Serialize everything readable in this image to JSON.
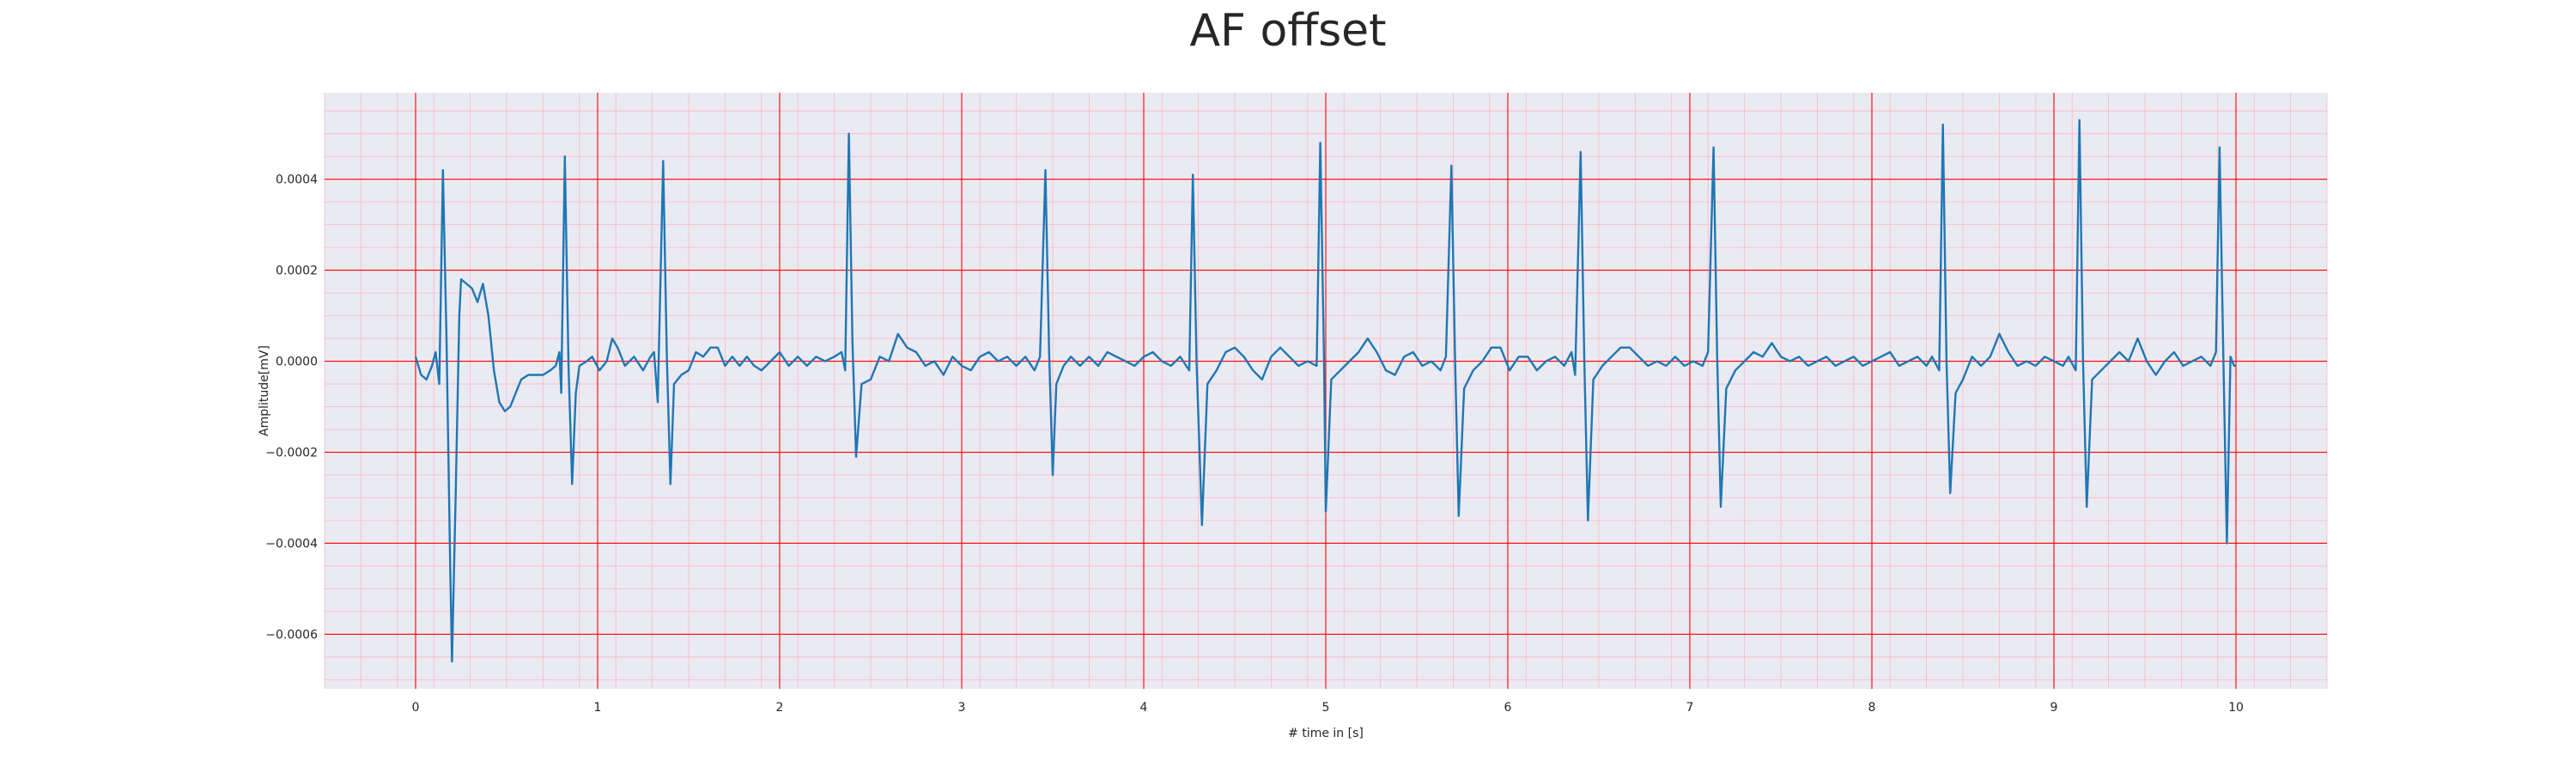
{
  "chart_data": {
    "type": "line",
    "title": "AF offset",
    "xlabel": "# time in [s]",
    "ylabel": "Amplitude[mV]",
    "xlim": [
      -0.5,
      10.5
    ],
    "ylim": [
      -0.00072,
      0.00059
    ],
    "x_ticks": [
      0,
      1,
      2,
      3,
      4,
      5,
      6,
      7,
      8,
      9,
      10
    ],
    "y_ticks": [
      0.0004,
      0.0002,
      0.0,
      -0.0002,
      -0.0004,
      -0.0006
    ],
    "y_tick_labels": [
      "0.0004",
      "0.0002",
      "0.0000",
      "−0.0002",
      "−0.0004",
      "−0.0006"
    ],
    "grid": "major and minor (ECG paper style)",
    "colors": {
      "background": "#eaeaf2",
      "major_grid": "#ff0000",
      "minor_grid": "#ffb6c1",
      "line": "#1f77b4"
    },
    "series": [
      {
        "values": [
          [
            0.0,
            1e-05
          ],
          [
            0.03,
            -3e-05
          ],
          [
            0.06,
            -4e-05
          ],
          [
            0.09,
            -1e-05
          ],
          [
            0.11,
            2e-05
          ],
          [
            0.13,
            -5e-05
          ],
          [
            0.15,
            0.00042
          ],
          [
            0.17,
            5e-05
          ],
          [
            0.19,
            -0.00045
          ],
          [
            0.2,
            -0.00066
          ],
          [
            0.22,
            -0.0003
          ],
          [
            0.24,
            0.0001
          ],
          [
            0.25,
            0.00018
          ],
          [
            0.28,
            0.00017
          ],
          [
            0.31,
            0.00016
          ],
          [
            0.34,
            0.00013
          ],
          [
            0.37,
            0.00017
          ],
          [
            0.4,
            0.0001
          ],
          [
            0.43,
            -2e-05
          ],
          [
            0.46,
            -9e-05
          ],
          [
            0.49,
            -0.00011
          ],
          [
            0.52,
            -0.0001
          ],
          [
            0.55,
            -7e-05
          ],
          [
            0.58,
            -4e-05
          ],
          [
            0.62,
            -3e-05
          ],
          [
            0.66,
            -3e-05
          ],
          [
            0.7,
            -3e-05
          ],
          [
            0.74,
            -2e-05
          ],
          [
            0.77,
            -1e-05
          ],
          [
            0.79,
            2e-05
          ],
          [
            0.8,
            -7e-05
          ],
          [
            0.82,
            0.00045
          ],
          [
            0.84,
            -1e-05
          ],
          [
            0.86,
            -0.00027
          ],
          [
            0.88,
            -7e-05
          ],
          [
            0.9,
            -1e-05
          ],
          [
            0.94,
            0.0
          ],
          [
            0.97,
            1e-05
          ],
          [
            1.01,
            -2e-05
          ],
          [
            1.05,
            0.0
          ],
          [
            1.08,
            5e-05
          ],
          [
            1.11,
            3e-05
          ],
          [
            1.15,
            -1e-05
          ],
          [
            1.2,
            1e-05
          ],
          [
            1.25,
            -2e-05
          ],
          [
            1.29,
            1e-05
          ],
          [
            1.31,
            2e-05
          ],
          [
            1.33,
            -9e-05
          ],
          [
            1.36,
            0.00044
          ],
          [
            1.38,
            1e-05
          ],
          [
            1.4,
            -0.00027
          ],
          [
            1.42,
            -5e-05
          ],
          [
            1.46,
            -3e-05
          ],
          [
            1.5,
            -2e-05
          ],
          [
            1.54,
            2e-05
          ],
          [
            1.58,
            1e-05
          ],
          [
            1.62,
            3e-05
          ],
          [
            1.66,
            3e-05
          ],
          [
            1.7,
            -1e-05
          ],
          [
            1.74,
            1e-05
          ],
          [
            1.78,
            -1e-05
          ],
          [
            1.82,
            1e-05
          ],
          [
            1.86,
            -1e-05
          ],
          [
            1.9,
            -2e-05
          ],
          [
            1.95,
            0.0
          ],
          [
            2.0,
            2e-05
          ],
          [
            2.05,
            -1e-05
          ],
          [
            2.1,
            1e-05
          ],
          [
            2.15,
            -1e-05
          ],
          [
            2.2,
            1e-05
          ],
          [
            2.25,
            0.0
          ],
          [
            2.3,
            1e-05
          ],
          [
            2.34,
            2e-05
          ],
          [
            2.36,
            -2e-05
          ],
          [
            2.38,
            0.0005
          ],
          [
            2.4,
            4e-05
          ],
          [
            2.42,
            -0.00021
          ],
          [
            2.45,
            -5e-05
          ],
          [
            2.5,
            -4e-05
          ],
          [
            2.55,
            1e-05
          ],
          [
            2.6,
            0.0
          ],
          [
            2.65,
            6e-05
          ],
          [
            2.7,
            3e-05
          ],
          [
            2.75,
            2e-05
          ],
          [
            2.8,
            -1e-05
          ],
          [
            2.85,
            0.0
          ],
          [
            2.9,
            -3e-05
          ],
          [
            2.95,
            1e-05
          ],
          [
            3.0,
            -1e-05
          ],
          [
            3.05,
            -2e-05
          ],
          [
            3.1,
            1e-05
          ],
          [
            3.15,
            2e-05
          ],
          [
            3.2,
            0.0
          ],
          [
            3.25,
            1e-05
          ],
          [
            3.3,
            -1e-05
          ],
          [
            3.35,
            1e-05
          ],
          [
            3.4,
            -2e-05
          ],
          [
            3.43,
            1e-05
          ],
          [
            3.46,
            0.00042
          ],
          [
            3.48,
            2e-05
          ],
          [
            3.5,
            -0.00025
          ],
          [
            3.52,
            -5e-05
          ],
          [
            3.56,
            -1e-05
          ],
          [
            3.6,
            1e-05
          ],
          [
            3.65,
            -1e-05
          ],
          [
            3.7,
            1e-05
          ],
          [
            3.75,
            -1e-05
          ],
          [
            3.8,
            2e-05
          ],
          [
            3.85,
            1e-05
          ],
          [
            3.9,
            0.0
          ],
          [
            3.95,
            -1e-05
          ],
          [
            4.0,
            1e-05
          ],
          [
            4.05,
            2e-05
          ],
          [
            4.1,
            0.0
          ],
          [
            4.15,
            -1e-05
          ],
          [
            4.2,
            1e-05
          ],
          [
            4.25,
            -2e-05
          ],
          [
            4.27,
            0.00041
          ],
          [
            4.29,
            0.0
          ],
          [
            4.32,
            -0.00036
          ],
          [
            4.35,
            -5e-05
          ],
          [
            4.4,
            -2e-05
          ],
          [
            4.45,
            2e-05
          ],
          [
            4.5,
            3e-05
          ],
          [
            4.55,
            1e-05
          ],
          [
            4.6,
            -2e-05
          ],
          [
            4.65,
            -4e-05
          ],
          [
            4.7,
            1e-05
          ],
          [
            4.75,
            3e-05
          ],
          [
            4.8,
            1e-05
          ],
          [
            4.85,
            -1e-05
          ],
          [
            4.9,
            0.0
          ],
          [
            4.95,
            -1e-05
          ],
          [
            4.97,
            0.00048
          ],
          [
            4.99,
            1e-05
          ],
          [
            5.0,
            -0.00033
          ],
          [
            5.03,
            -4e-05
          ],
          [
            5.08,
            -2e-05
          ],
          [
            5.13,
            0.0
          ],
          [
            5.18,
            2e-05
          ],
          [
            5.23,
            5e-05
          ],
          [
            5.28,
            2e-05
          ],
          [
            5.33,
            -2e-05
          ],
          [
            5.38,
            -3e-05
          ],
          [
            5.43,
            1e-05
          ],
          [
            5.48,
            2e-05
          ],
          [
            5.53,
            -1e-05
          ],
          [
            5.58,
            0.0
          ],
          [
            5.63,
            -2e-05
          ],
          [
            5.66,
            1e-05
          ],
          [
            5.69,
            0.00043
          ],
          [
            5.71,
            1e-05
          ],
          [
            5.73,
            -0.00034
          ],
          [
            5.76,
            -6e-05
          ],
          [
            5.81,
            -2e-05
          ],
          [
            5.86,
            0.0
          ],
          [
            5.91,
            3e-05
          ],
          [
            5.96,
            3e-05
          ],
          [
            6.01,
            -2e-05
          ],
          [
            6.06,
            1e-05
          ],
          [
            6.11,
            1e-05
          ],
          [
            6.16,
            -2e-05
          ],
          [
            6.21,
            0.0
          ],
          [
            6.26,
            1e-05
          ],
          [
            6.31,
            -1e-05
          ],
          [
            6.35,
            2e-05
          ],
          [
            6.37,
            -3e-05
          ],
          [
            6.4,
            0.00046
          ],
          [
            6.42,
            1e-05
          ],
          [
            6.44,
            -0.00035
          ],
          [
            6.47,
            -4e-05
          ],
          [
            6.52,
            -1e-05
          ],
          [
            6.57,
            1e-05
          ],
          [
            6.62,
            3e-05
          ],
          [
            6.67,
            3e-05
          ],
          [
            6.72,
            1e-05
          ],
          [
            6.77,
            -1e-05
          ],
          [
            6.82,
            0.0
          ],
          [
            6.87,
            -1e-05
          ],
          [
            6.92,
            1e-05
          ],
          [
            6.97,
            -1e-05
          ],
          [
            7.02,
            0.0
          ],
          [
            7.07,
            -1e-05
          ],
          [
            7.1,
            2e-05
          ],
          [
            7.13,
            0.00047
          ],
          [
            7.15,
            1e-05
          ],
          [
            7.17,
            -0.00032
          ],
          [
            7.2,
            -6e-05
          ],
          [
            7.25,
            -2e-05
          ],
          [
            7.3,
            0.0
          ],
          [
            7.35,
            2e-05
          ],
          [
            7.4,
            1e-05
          ],
          [
            7.45,
            4e-05
          ],
          [
            7.5,
            1e-05
          ],
          [
            7.55,
            0.0
          ],
          [
            7.6,
            1e-05
          ],
          [
            7.65,
            -1e-05
          ],
          [
            7.7,
            0.0
          ],
          [
            7.75,
            1e-05
          ],
          [
            7.8,
            -1e-05
          ],
          [
            7.85,
            0.0
          ],
          [
            7.9,
            1e-05
          ],
          [
            7.95,
            -1e-05
          ],
          [
            8.0,
            0.0
          ],
          [
            8.05,
            1e-05
          ],
          [
            8.1,
            2e-05
          ],
          [
            8.15,
            -1e-05
          ],
          [
            8.2,
            0.0
          ],
          [
            8.25,
            1e-05
          ],
          [
            8.3,
            -1e-05
          ],
          [
            8.33,
            1e-05
          ],
          [
            8.37,
            -2e-05
          ],
          [
            8.39,
            0.00052
          ],
          [
            8.41,
            0.0
          ],
          [
            8.43,
            -0.00029
          ],
          [
            8.46,
            -7e-05
          ],
          [
            8.5,
            -4e-05
          ],
          [
            8.55,
            1e-05
          ],
          [
            8.6,
            -1e-05
          ],
          [
            8.65,
            1e-05
          ],
          [
            8.7,
            6e-05
          ],
          [
            8.75,
            2e-05
          ],
          [
            8.8,
            -1e-05
          ],
          [
            8.85,
            0.0
          ],
          [
            8.9,
            -1e-05
          ],
          [
            8.95,
            1e-05
          ],
          [
            9.0,
            0.0
          ],
          [
            9.05,
            -1e-05
          ],
          [
            9.08,
            1e-05
          ],
          [
            9.12,
            -2e-05
          ],
          [
            9.14,
            0.00053
          ],
          [
            9.16,
            0.0
          ],
          [
            9.18,
            -0.00032
          ],
          [
            9.21,
            -4e-05
          ],
          [
            9.26,
            -2e-05
          ],
          [
            9.31,
            0.0
          ],
          [
            9.36,
            2e-05
          ],
          [
            9.41,
            0.0
          ],
          [
            9.46,
            5e-05
          ],
          [
            9.51,
            0.0
          ],
          [
            9.56,
            -3e-05
          ],
          [
            9.61,
            0.0
          ],
          [
            9.66,
            2e-05
          ],
          [
            9.71,
            -1e-05
          ],
          [
            9.76,
            0.0
          ],
          [
            9.81,
            1e-05
          ],
          [
            9.86,
            -1e-05
          ],
          [
            9.89,
            2e-05
          ],
          [
            9.91,
            0.00047
          ],
          [
            9.93,
            2e-05
          ],
          [
            9.95,
            -0.0004
          ],
          [
            9.97,
            1e-05
          ],
          [
            9.99,
            -1e-05
          ],
          [
            10.0,
            -1e-05
          ]
        ]
      }
    ]
  }
}
